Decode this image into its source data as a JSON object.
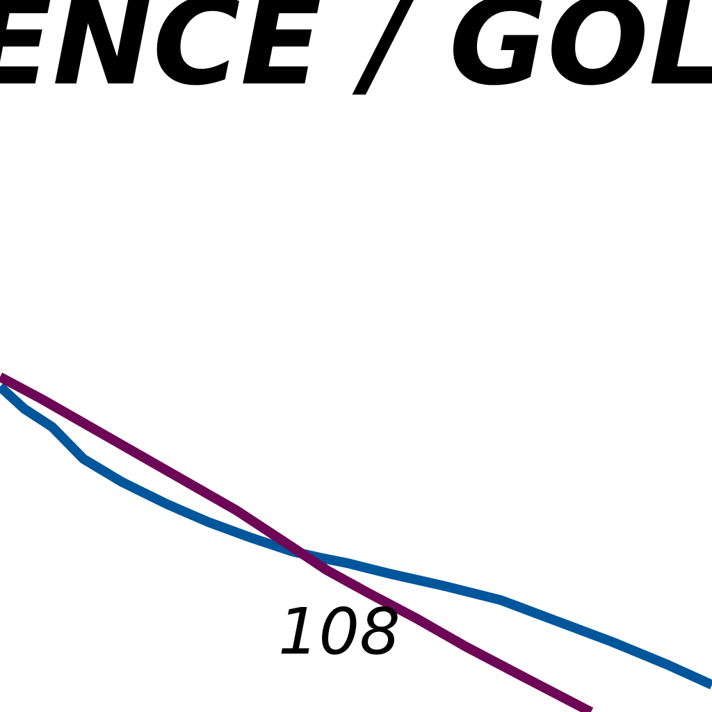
{
  "map": {
    "title_fragment": "ENCE / GOLI",
    "route_number": "108",
    "colors": {
      "background": "#ffffff",
      "text": "#000000",
      "blue_line": "#00569b",
      "purple_line": "#6e0656"
    }
  }
}
